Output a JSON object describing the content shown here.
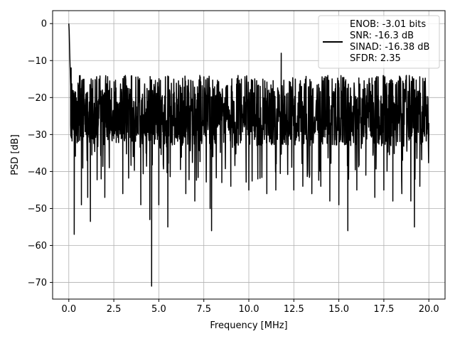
{
  "chart_data": {
    "type": "line",
    "title": "",
    "xlabel": "Frequency [MHz]",
    "ylabel": "PSD [dB]",
    "xlim": [
      -0.9,
      20.9
    ],
    "ylim": [
      -74.5,
      3.5
    ],
    "xticks": [
      0.0,
      2.5,
      5.0,
      7.5,
      10.0,
      12.5,
      15.0,
      17.5,
      20.0
    ],
    "xtick_labels": [
      "0.0",
      "2.5",
      "5.0",
      "7.5",
      "10.0",
      "12.5",
      "15.0",
      "17.5",
      "20.0"
    ],
    "yticks": [
      0,
      -10,
      -20,
      -30,
      -40,
      -50,
      -60,
      -70
    ],
    "ytick_labels": [
      "0",
      "−10",
      "−20",
      "−30",
      "−40",
      "−50",
      "−60",
      "−70"
    ],
    "grid": true,
    "legend_position": "top-right",
    "legend_lines": [
      "ENOB: -3.01 bits",
      "SNR: -16.3 dB",
      "SINAD: -16.38 dB",
      "SFDR: 2.35"
    ],
    "line_color": "#000000",
    "noise_band": {
      "x_start": 0.1,
      "x_end": 20.0,
      "upper_db": -14,
      "lower_db": -33,
      "median_db": -25
    },
    "series": [
      {
        "x": [
          0.0,
          0.02,
          0.05,
          0.1,
          0.13,
          0.15,
          0.2,
          0.3,
          0.5,
          0.7,
          0.9,
          1.05,
          1.2,
          1.5,
          2.0,
          2.5,
          3.0,
          3.5,
          4.0,
          4.5,
          4.6,
          4.7,
          5.0,
          5.5,
          6.0,
          6.5,
          7.0,
          7.5,
          7.85,
          7.93,
          8.0,
          8.5,
          9.0,
          9.5,
          10.0,
          10.5,
          11.0,
          11.5,
          11.8,
          12.0,
          12.5,
          13.0,
          13.5,
          14.0,
          14.5,
          15.0,
          15.5,
          16.0,
          16.5,
          17.0,
          17.5,
          18.0,
          18.5,
          19.0,
          19.2,
          19.5,
          20.0
        ],
        "y": [
          0.0,
          -2.0,
          -8.0,
          -17.0,
          -12.0,
          -24.0,
          -20.0,
          -57.0,
          -26.0,
          -49.0,
          -26.0,
          -47.0,
          -53.5,
          -28.0,
          -47.0,
          -28.0,
          -46.0,
          -30.0,
          -49.0,
          -53.0,
          -71.0,
          -30.0,
          -49.0,
          -55.0,
          -31.0,
          -46.0,
          -48.0,
          -30.0,
          -50.0,
          -56.0,
          -36.0,
          -43.0,
          -44.0,
          -30.0,
          -45.0,
          -42.0,
          -46.0,
          -45.0,
          -8.0,
          -26.0,
          -45.0,
          -44.0,
          -46.0,
          -44.0,
          -48.0,
          -49.0,
          -56.0,
          -45.0,
          -41.0,
          -47.0,
          -45.0,
          -48.0,
          -46.0,
          -48.0,
          -55.0,
          -44.0,
          -27.0
        ]
      }
    ]
  }
}
